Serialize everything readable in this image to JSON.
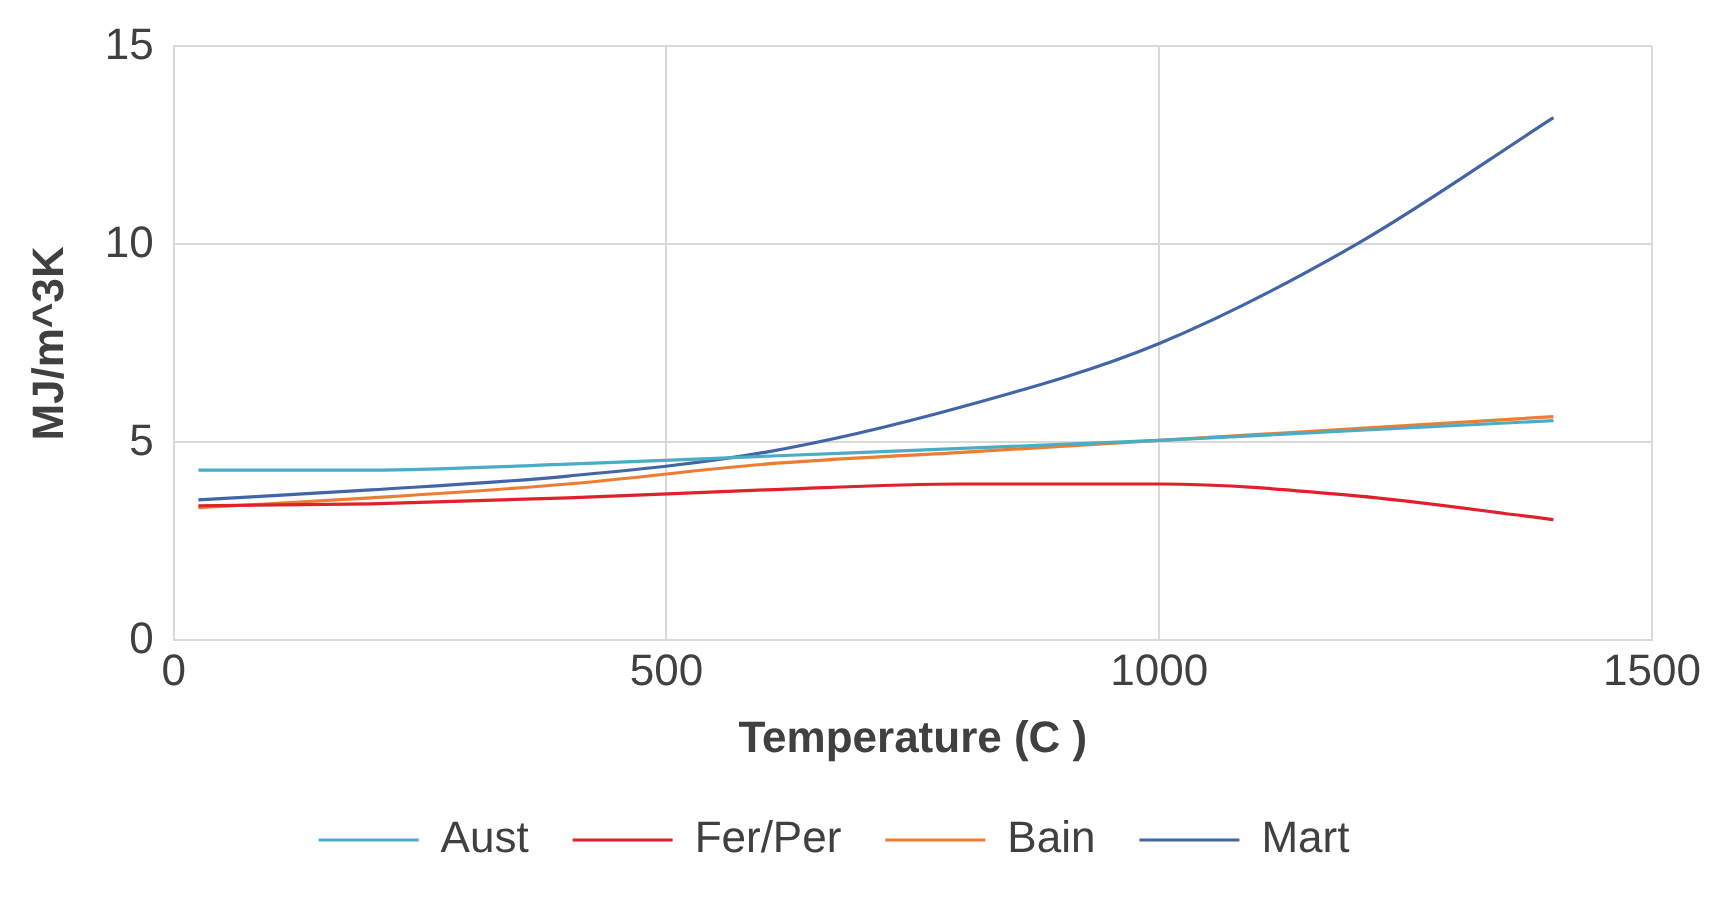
{
  "chart_data": {
    "type": "line",
    "xlabel": "Temperature (C )",
    "ylabel": "MJ/m^3K",
    "xlim": [
      0,
      1500
    ],
    "xticks": [
      0,
      500,
      1000,
      1500
    ],
    "ylim": [
      0,
      15
    ],
    "yticks": [
      0,
      5,
      10,
      15
    ],
    "grid": true,
    "legend": "bottom",
    "marker": "none",
    "line_style": "solid",
    "x": [
      25,
      200,
      400,
      600,
      800,
      1000,
      1200,
      1400
    ],
    "series": [
      {
        "name": "Aust",
        "color": "#4bacc6",
        "values": [
          4.3,
          4.3,
          4.45,
          4.65,
          4.85,
          5.05,
          5.3,
          5.55
        ]
      },
      {
        "name": "Fer/Per",
        "color": "#e0202b",
        "values": [
          3.4,
          3.45,
          3.6,
          3.8,
          3.95,
          3.95,
          3.65,
          3.05
        ]
      },
      {
        "name": "Bain",
        "color": "#ed7d31",
        "values": [
          3.35,
          3.6,
          3.95,
          4.45,
          4.75,
          5.05,
          5.35,
          5.65
        ]
      },
      {
        "name": "Mart",
        "color": "#4165a6",
        "values": [
          3.55,
          3.8,
          4.15,
          4.75,
          5.9,
          7.5,
          10.0,
          13.2
        ]
      }
    ]
  }
}
